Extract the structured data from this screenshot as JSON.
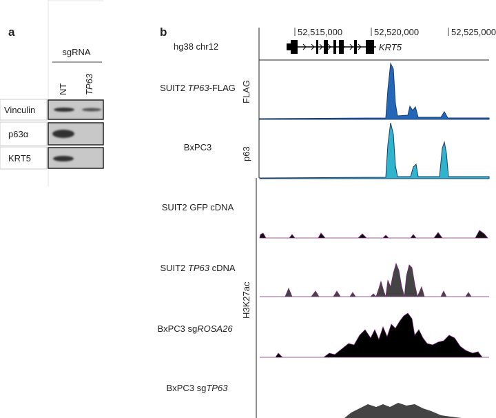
{
  "panel_a": {
    "label": "a",
    "sgrna_header": "sgRNA",
    "lanes": [
      "NT",
      "TP63"
    ],
    "blots": [
      "Vinculin",
      "p63α",
      "KRT5"
    ]
  },
  "panel_b": {
    "label": "b",
    "genome": "hg38 chr12",
    "coordinates": [
      "52,515,000",
      "52,520,000",
      "52,525,000"
    ],
    "gene": "KRT5",
    "tracks": [
      {
        "label": [
          "SUIT2 ",
          "TP63",
          "-FLAG"
        ]
      },
      {
        "label": [
          "BxPC3"
        ]
      },
      {
        "label": [
          "SUIT2 GFP cDNA"
        ]
      },
      {
        "label": [
          "SUIT2 ",
          "TP63",
          " cDNA"
        ]
      },
      {
        "label": [
          "BxPC3 sg",
          "ROSA26"
        ]
      },
      {
        "label": [
          "BxPC3 sg",
          "TP63"
        ]
      }
    ],
    "antibodies": [
      "FLAG",
      "p63",
      "H3K27ac"
    ]
  }
}
